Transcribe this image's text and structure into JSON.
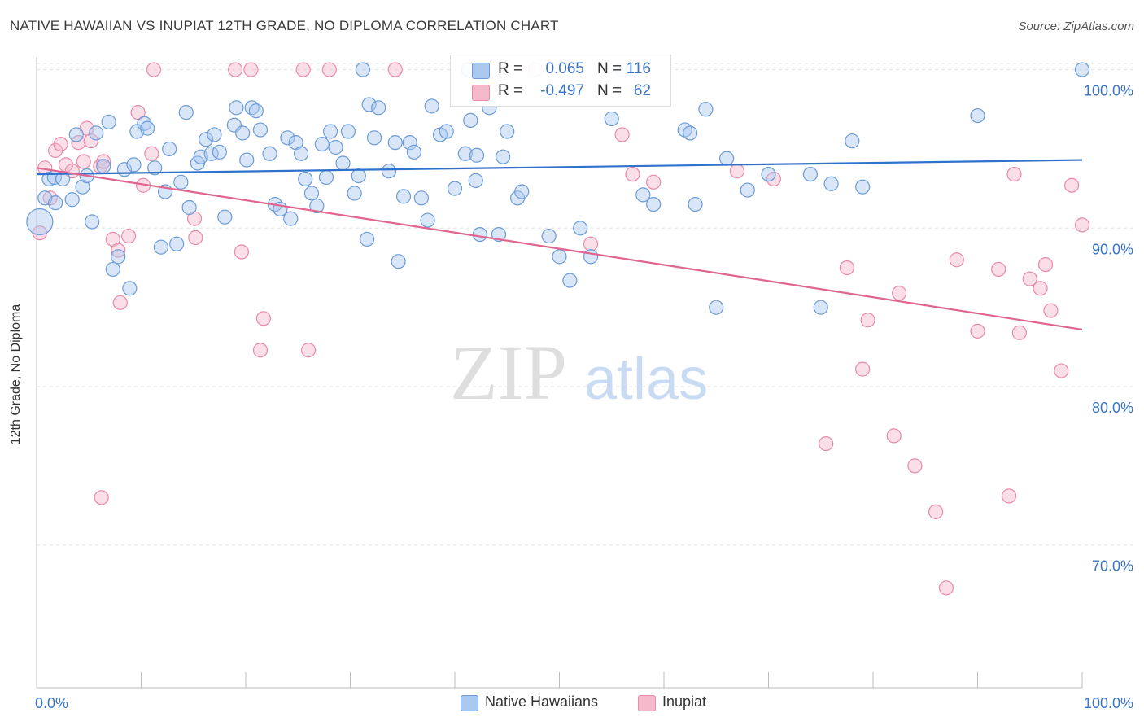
{
  "header": {
    "title": "NATIVE HAWAIIAN VS INUPIAT 12TH GRADE, NO DIPLOMA CORRELATION CHART",
    "source": "Source: ZipAtlas.com"
  },
  "watermark": {
    "zip": "ZIP",
    "atlas": "atlas"
  },
  "legend_top": {
    "rows": [
      {
        "r_label": "R =",
        "r_value": "0.065",
        "n_label": "N =",
        "n_value": "116",
        "color": "#a9c8f0"
      },
      {
        "r_label": "R =",
        "r_value": "-0.497",
        "n_label": "N =",
        "n_value": "62",
        "color": "#f6b8cb"
      }
    ]
  },
  "legend_bottom": {
    "items": [
      {
        "label": "Native Hawaiians",
        "color": "#a9c8f0"
      },
      {
        "label": "Inupiat",
        "color": "#f6b8cb"
      }
    ]
  },
  "colors": {
    "blue_fill": "#a9c8f0",
    "blue_stroke": "#6b9bd8",
    "blue_line": "#2f72cc",
    "pink_fill": "#f6b8cb",
    "pink_stroke": "#e98aa8",
    "pink_line": "#e0668f",
    "tick_label": "#3a74c4",
    "grid": "#e2e2e2"
  },
  "chart_data": {
    "type": "scatter",
    "title": "NATIVE HAWAIIAN VS INUPIAT 12TH GRADE, NO DIPLOMA CORRELATION CHART",
    "xlabel": "",
    "ylabel": "12th Grade, No Diploma",
    "xlim": [
      0,
      100
    ],
    "ylim": [
      61,
      100.8
    ],
    "x_tick_labels": [
      "0.0%",
      "100.0%"
    ],
    "y_ticks": [
      {
        "value": 100,
        "label": "100.0%"
      },
      {
        "value": 90,
        "label": "90.0%"
      },
      {
        "value": 80,
        "label": "80.0%"
      },
      {
        "value": 70,
        "label": "70.0%"
      }
    ],
    "grid": true,
    "legend_position": "bottom",
    "series": [
      {
        "name": "Native Hawaiians",
        "marker": "circle",
        "trend": {
          "x": [
            0,
            100
          ],
          "y": [
            93.4,
            94.3
          ]
        },
        "points": [
          [
            0.3,
            90.4
          ],
          [
            0.8,
            91.9
          ],
          [
            1.2,
            93.1
          ],
          [
            1.8,
            91.6
          ],
          [
            1.7,
            93.2
          ],
          [
            2.5,
            93.1
          ],
          [
            3.4,
            91.8
          ],
          [
            3.8,
            95.9
          ],
          [
            4.4,
            92.6
          ],
          [
            4.8,
            93.3
          ],
          [
            5.3,
            90.4
          ],
          [
            5.7,
            96.0
          ],
          [
            6.4,
            93.9
          ],
          [
            6.9,
            96.7
          ],
          [
            7.3,
            87.4
          ],
          [
            7.8,
            88.2
          ],
          [
            8.4,
            93.7
          ],
          [
            8.9,
            86.2
          ],
          [
            9.3,
            94.0
          ],
          [
            9.6,
            96.1
          ],
          [
            10.3,
            96.6
          ],
          [
            10.6,
            96.3
          ],
          [
            11.3,
            93.8
          ],
          [
            11.9,
            88.8
          ],
          [
            12.3,
            92.3
          ],
          [
            12.7,
            95.0
          ],
          [
            13.4,
            89.0
          ],
          [
            13.8,
            92.9
          ],
          [
            14.3,
            97.3
          ],
          [
            14.6,
            91.3
          ],
          [
            15.4,
            94.1
          ],
          [
            15.7,
            94.5
          ],
          [
            16.2,
            95.6
          ],
          [
            16.7,
            94.7
          ],
          [
            17.0,
            95.9
          ],
          [
            17.5,
            94.8
          ],
          [
            18.0,
            90.7
          ],
          [
            18.9,
            96.5
          ],
          [
            19.1,
            97.6
          ],
          [
            19.7,
            96.0
          ],
          [
            20.1,
            94.3
          ],
          [
            20.6,
            97.6
          ],
          [
            21.0,
            97.4
          ],
          [
            21.4,
            96.2
          ],
          [
            22.3,
            94.7
          ],
          [
            22.8,
            91.5
          ],
          [
            23.3,
            91.2
          ],
          [
            24.0,
            95.7
          ],
          [
            24.3,
            90.6
          ],
          [
            24.8,
            95.4
          ],
          [
            25.3,
            94.7
          ],
          [
            25.7,
            93.1
          ],
          [
            26.3,
            92.2
          ],
          [
            26.8,
            91.4
          ],
          [
            27.3,
            95.3
          ],
          [
            27.7,
            93.2
          ],
          [
            28.1,
            96.1
          ],
          [
            28.6,
            95.1
          ],
          [
            29.3,
            94.1
          ],
          [
            29.8,
            96.1
          ],
          [
            30.4,
            92.2
          ],
          [
            30.8,
            93.3
          ],
          [
            31.6,
            89.3
          ],
          [
            31.8,
            97.8
          ],
          [
            32.3,
            95.7
          ],
          [
            32.7,
            97.6
          ],
          [
            33.7,
            93.6
          ],
          [
            34.3,
            95.4
          ],
          [
            34.6,
            87.9
          ],
          [
            35.1,
            92.0
          ],
          [
            35.7,
            95.4
          ],
          [
            36.1,
            94.8
          ],
          [
            36.8,
            91.9
          ],
          [
            37.4,
            90.5
          ],
          [
            37.8,
            97.7
          ],
          [
            38.6,
            95.9
          ],
          [
            39.2,
            96.1
          ],
          [
            40.0,
            92.5
          ],
          [
            41.0,
            94.7
          ],
          [
            41.5,
            96.8
          ],
          [
            42.0,
            93.0
          ],
          [
            42.1,
            94.6
          ],
          [
            42.4,
            89.6
          ],
          [
            43.3,
            97.6
          ],
          [
            44.2,
            89.6
          ],
          [
            44.6,
            94.5
          ],
          [
            45.0,
            96.1
          ],
          [
            46.0,
            91.9
          ],
          [
            46.4,
            92.3
          ],
          [
            49.0,
            89.5
          ],
          [
            50.0,
            88.2
          ],
          [
            51.0,
            86.7
          ],
          [
            52.0,
            90.0
          ],
          [
            53.0,
            88.2
          ],
          [
            55.0,
            96.9
          ],
          [
            56.0,
            100.0
          ],
          [
            57.0,
            100.0
          ],
          [
            58.0,
            92.1
          ],
          [
            59.0,
            91.5
          ],
          [
            62.0,
            96.2
          ],
          [
            62.5,
            96.0
          ],
          [
            63.0,
            91.5
          ],
          [
            64.0,
            97.5
          ],
          [
            65.0,
            85.0
          ],
          [
            66.0,
            94.4
          ],
          [
            68.0,
            92.4
          ],
          [
            70.0,
            93.4
          ],
          [
            74.0,
            93.4
          ],
          [
            75.0,
            85.0
          ],
          [
            76.0,
            92.8
          ],
          [
            78.0,
            95.5
          ],
          [
            79.0,
            92.6
          ],
          [
            90.0,
            97.1
          ],
          [
            100.0,
            100.0
          ],
          [
            41.3,
            100.0
          ],
          [
            31.2,
            100.0
          ]
        ]
      },
      {
        "name": "Inupiat",
        "marker": "circle",
        "trend": {
          "x": [
            0,
            100
          ],
          "y": [
            93.8,
            83.6
          ]
        },
        "points": [
          [
            0.3,
            89.7
          ],
          [
            0.8,
            93.8
          ],
          [
            1.3,
            91.9
          ],
          [
            1.8,
            94.9
          ],
          [
            2.3,
            95.3
          ],
          [
            2.8,
            94.0
          ],
          [
            3.4,
            93.6
          ],
          [
            4.0,
            95.4
          ],
          [
            4.5,
            94.2
          ],
          [
            4.8,
            96.3
          ],
          [
            5.2,
            95.5
          ],
          [
            6.1,
            93.9
          ],
          [
            6.4,
            94.2
          ],
          [
            6.2,
            73.0
          ],
          [
            7.3,
            89.3
          ],
          [
            7.8,
            88.6
          ],
          [
            8.0,
            85.3
          ],
          [
            8.8,
            89.5
          ],
          [
            9.7,
            97.3
          ],
          [
            10.2,
            92.7
          ],
          [
            11.0,
            94.7
          ],
          [
            11.2,
            100.0
          ],
          [
            15.1,
            90.6
          ],
          [
            15.2,
            89.4
          ],
          [
            19.0,
            100.0
          ],
          [
            19.6,
            88.5
          ],
          [
            20.5,
            100.0
          ],
          [
            21.4,
            82.3
          ],
          [
            21.7,
            84.3
          ],
          [
            25.5,
            100.0
          ],
          [
            26.0,
            82.3
          ],
          [
            28.0,
            100.0
          ],
          [
            34.3,
            100.0
          ],
          [
            47.7,
            100.0
          ],
          [
            53.0,
            89.0
          ],
          [
            56.0,
            95.9
          ],
          [
            57.0,
            93.4
          ],
          [
            59.0,
            92.9
          ],
          [
            67.0,
            93.6
          ],
          [
            70.5,
            93.1
          ],
          [
            75.5,
            76.4
          ],
          [
            77.5,
            87.5
          ],
          [
            79.0,
            81.1
          ],
          [
            79.5,
            84.2
          ],
          [
            82.0,
            76.9
          ],
          [
            82.5,
            85.9
          ],
          [
            84.0,
            75.0
          ],
          [
            86.0,
            72.1
          ],
          [
            87.0,
            67.3
          ],
          [
            88.0,
            88.0
          ],
          [
            90.0,
            83.5
          ],
          [
            92.0,
            87.4
          ],
          [
            93.0,
            73.1
          ],
          [
            93.5,
            93.4
          ],
          [
            94.0,
            83.4
          ],
          [
            95.0,
            86.8
          ],
          [
            96.0,
            86.2
          ],
          [
            96.5,
            87.7
          ],
          [
            97.0,
            84.8
          ],
          [
            98.0,
            81.0
          ],
          [
            99.0,
            92.7
          ],
          [
            100.0,
            90.2
          ]
        ]
      }
    ]
  },
  "labels": {
    "ylabel": "12th Grade, No Diploma"
  }
}
